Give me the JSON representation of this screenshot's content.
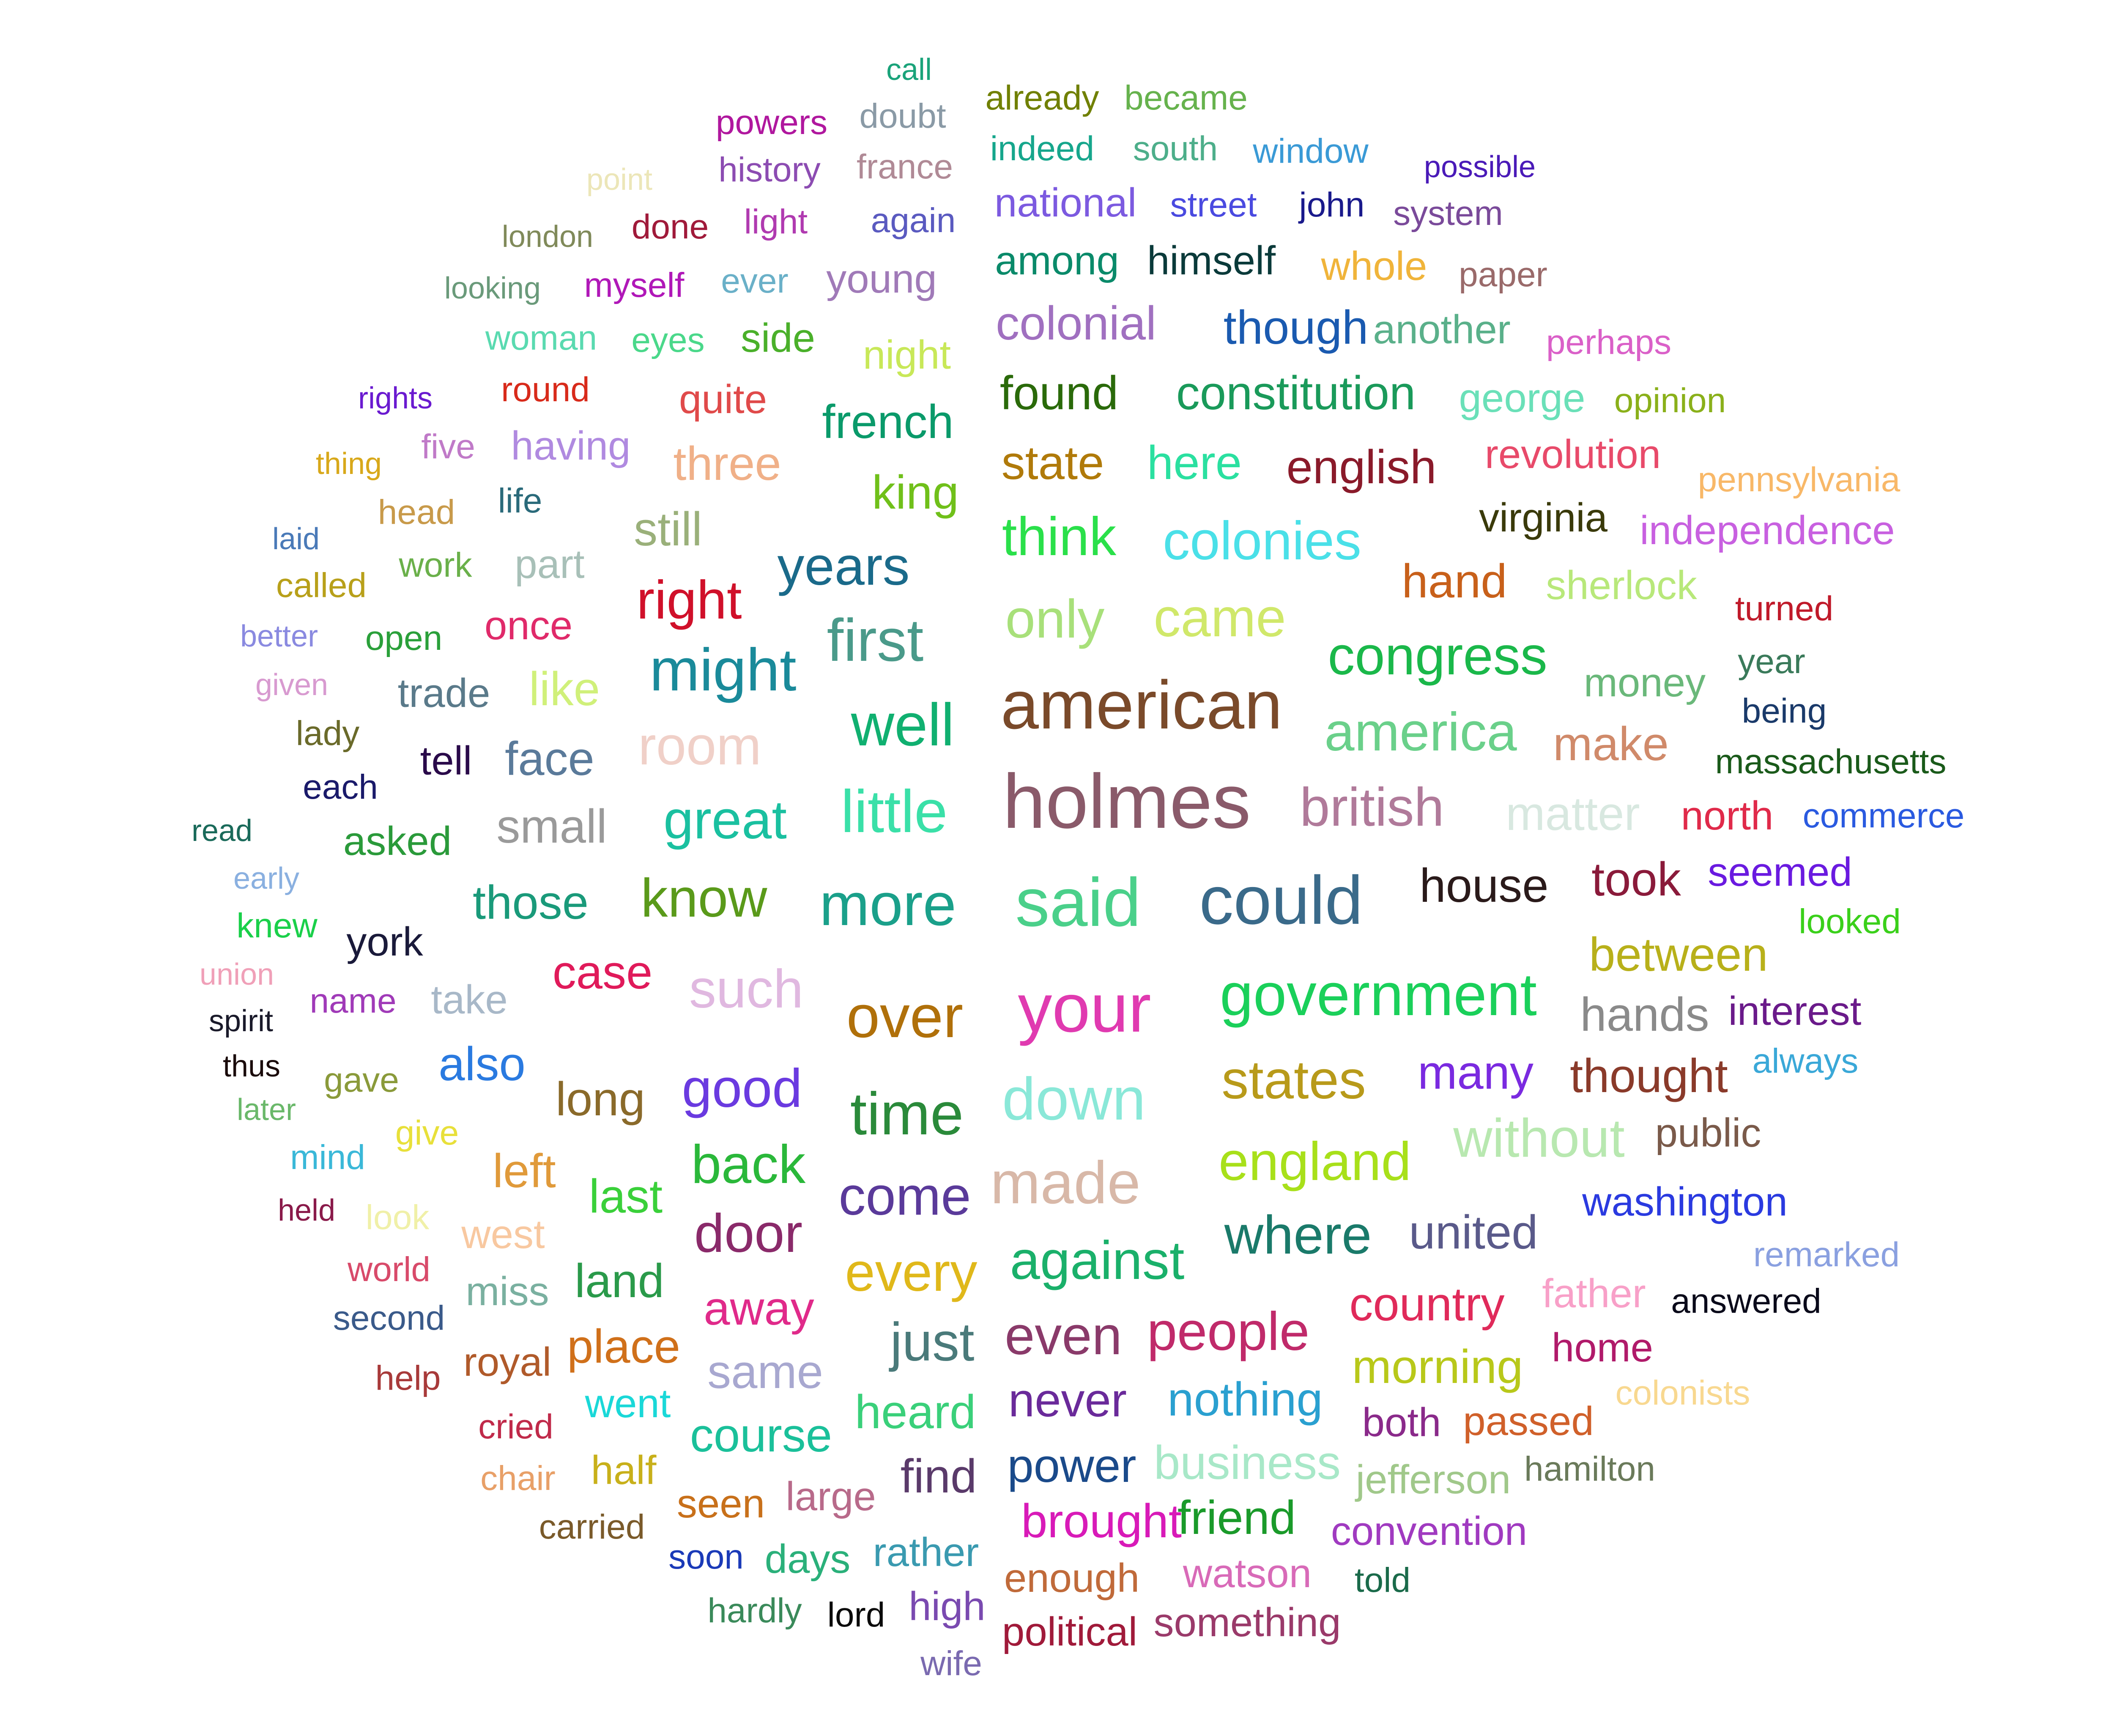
{
  "words": [
    {
      "text": "call",
      "color": "#1aa37a",
      "level": 1
    },
    {
      "text": "powers",
      "color": "#b0179e",
      "level": 2
    },
    {
      "text": "doubt",
      "color": "#8a9aa6",
      "level": 2
    },
    {
      "text": "already",
      "color": "#708000",
      "level": 2
    },
    {
      "text": "became",
      "color": "#66b24d",
      "level": 2
    },
    {
      "text": "point",
      "color": "#ece6b8",
      "level": 1
    },
    {
      "text": "history",
      "color": "#8c4cb2",
      "level": 2
    },
    {
      "text": "france",
      "color": "#b08a96",
      "level": 2
    },
    {
      "text": "indeed",
      "color": "#16a68c",
      "level": 2
    },
    {
      "text": "south",
      "color": "#4dae8a",
      "level": 2
    },
    {
      "text": "window",
      "color": "#3a9ad6",
      "level": 2
    },
    {
      "text": "possible",
      "color": "#4a1ab8",
      "level": 1
    },
    {
      "text": "london",
      "color": "#808a5a",
      "level": 1
    },
    {
      "text": "done",
      "color": "#a01a3a",
      "level": 2
    },
    {
      "text": "light",
      "color": "#b03ab0",
      "level": 2
    },
    {
      "text": "again",
      "color": "#5a5ac0",
      "level": 2
    },
    {
      "text": "national",
      "color": "#7c5ae0",
      "level": 3
    },
    {
      "text": "street",
      "color": "#4a4ae0",
      "level": 2
    },
    {
      "text": "john",
      "color": "#1a1a8c",
      "level": 2
    },
    {
      "text": "system",
      "color": "#7a4a9a",
      "level": 2
    },
    {
      "text": "looking",
      "color": "#6a9a7a",
      "level": 1
    },
    {
      "text": "myself",
      "color": "#b018b8",
      "level": 2
    },
    {
      "text": "ever",
      "color": "#6ab0c8",
      "level": 2
    },
    {
      "text": "young",
      "color": "#a07ab8",
      "level": 3
    },
    {
      "text": "among",
      "color": "#0a8a6a",
      "level": 3
    },
    {
      "text": "himself",
      "color": "#0a3a3a",
      "level": 3
    },
    {
      "text": "whole",
      "color": "#f0b43a",
      "level": 3
    },
    {
      "text": "paper",
      "color": "#9a6a6a",
      "level": 2
    },
    {
      "text": "woman",
      "color": "#5adab0",
      "level": 2
    },
    {
      "text": "eyes",
      "color": "#4ad88a",
      "level": 2
    },
    {
      "text": "side",
      "color": "#4ab02a",
      "level": 3
    },
    {
      "text": "night",
      "color": "#c8e858",
      "level": 3
    },
    {
      "text": "colonial",
      "color": "#a070c0",
      "level": 4
    },
    {
      "text": "though",
      "color": "#1a5ab0",
      "level": 4
    },
    {
      "text": "another",
      "color": "#5ab08a",
      "level": 3
    },
    {
      "text": "perhaps",
      "color": "#da60c8",
      "level": 2
    },
    {
      "text": "rights",
      "color": "#6a1ad0",
      "level": 1
    },
    {
      "text": "round",
      "color": "#d82a1a",
      "level": 2
    },
    {
      "text": "quite",
      "color": "#e04a4a",
      "level": 3
    },
    {
      "text": "french",
      "color": "#0a9a6a",
      "level": 4
    },
    {
      "text": "found",
      "color": "#2a6a0a",
      "level": 4
    },
    {
      "text": "constitution",
      "color": "#1a9a5a",
      "level": 4
    },
    {
      "text": "george",
      "color": "#6ae0b8",
      "level": 3
    },
    {
      "text": "opinion",
      "color": "#8ab01a",
      "level": 2
    },
    {
      "text": "thing",
      "color": "#d8a81a",
      "level": 1
    },
    {
      "text": "five",
      "color": "#c07ac8",
      "level": 2
    },
    {
      "text": "having",
      "color": "#b08ae0",
      "level": 3
    },
    {
      "text": "three",
      "color": "#f0b088",
      "level": 4
    },
    {
      "text": "king",
      "color": "#70c01a",
      "level": 4
    },
    {
      "text": "state",
      "color": "#b07a0a",
      "level": 4
    },
    {
      "text": "here",
      "color": "#2ae0a0",
      "level": 4
    },
    {
      "text": "english",
      "color": "#8a1a2a",
      "level": 4
    },
    {
      "text": "revolution",
      "color": "#e84a6a",
      "level": 3
    },
    {
      "text": "pennsylvania",
      "color": "#f8b868",
      "level": 2
    },
    {
      "text": "head",
      "color": "#c89a4a",
      "level": 2
    },
    {
      "text": "life",
      "color": "#2a6a7a",
      "level": 2
    },
    {
      "text": "still",
      "color": "#9ab07a",
      "level": 4
    },
    {
      "text": "think",
      "color": "#2ae04a",
      "level": 5
    },
    {
      "text": "colonies",
      "color": "#4ae0e8",
      "level": 5
    },
    {
      "text": "virginia",
      "color": "#3a3a0a",
      "level": 3
    },
    {
      "text": "independence",
      "color": "#c860e0",
      "level": 3
    },
    {
      "text": "laid",
      "color": "#4a7ab8",
      "level": 1
    },
    {
      "text": "called",
      "color": "#b8a01a",
      "level": 2
    },
    {
      "text": "work",
      "color": "#6ab04a",
      "level": 2
    },
    {
      "text": "part",
      "color": "#a8c0b8",
      "level": 3
    },
    {
      "text": "years",
      "color": "#1a6a8a",
      "level": 5
    },
    {
      "text": "hand",
      "color": "#c8601a",
      "level": 4
    },
    {
      "text": "sherlock",
      "color": "#b8e87a",
      "level": 3
    },
    {
      "text": "right",
      "color": "#d0102a",
      "level": 5
    },
    {
      "text": "only",
      "color": "#a8e07a",
      "level": 5
    },
    {
      "text": "came",
      "color": "#d0e86a",
      "level": 5
    },
    {
      "text": "turned",
      "color": "#c01a2a",
      "level": 2
    },
    {
      "text": "better",
      "color": "#8a8ae0",
      "level": 1
    },
    {
      "text": "open",
      "color": "#2aa03a",
      "level": 2
    },
    {
      "text": "once",
      "color": "#e02a6a",
      "level": 3
    },
    {
      "text": "first",
      "color": "#4a9a8a",
      "level": 6
    },
    {
      "text": "congress",
      "color": "#1ab84a",
      "level": 5
    },
    {
      "text": "year",
      "color": "#3a7a5a",
      "level": 2
    },
    {
      "text": "given",
      "color": "#d89ad0",
      "level": 1
    },
    {
      "text": "trade",
      "color": "#5a7a8a",
      "level": 3
    },
    {
      "text": "like",
      "color": "#d0f07a",
      "level": 4
    },
    {
      "text": "might",
      "color": "#1a8a9a",
      "level": 6
    },
    {
      "text": "american",
      "color": "#7a4a2a",
      "level": 7
    },
    {
      "text": "money",
      "color": "#6ab87a",
      "level": 3
    },
    {
      "text": "being",
      "color": "#1a3a6a",
      "level": 2
    },
    {
      "text": "lady",
      "color": "#6a6a2a",
      "level": 2
    },
    {
      "text": "well",
      "color": "#10b070",
      "level": 6
    },
    {
      "text": "america",
      "color": "#6ad08a",
      "level": 5
    },
    {
      "text": "make",
      "color": "#d08a6a",
      "level": 4
    },
    {
      "text": "massachusetts",
      "color": "#1a5a1a",
      "level": 2
    },
    {
      "text": "tell",
      "color": "#2a0a4a",
      "level": 3
    },
    {
      "text": "face",
      "color": "#5a7a9a",
      "level": 4
    },
    {
      "text": "room",
      "color": "#f0d0c8",
      "level": 5
    },
    {
      "text": "each",
      "color": "#1a1a6a",
      "level": 2
    },
    {
      "text": "read",
      "color": "#1a6a5a",
      "level": 1
    },
    {
      "text": "asked",
      "color": "#2a9a3a",
      "level": 3
    },
    {
      "text": "small",
      "color": "#9a9a9a",
      "level": 4
    },
    {
      "text": "great",
      "color": "#1ac0a0",
      "level": 5
    },
    {
      "text": "little",
      "color": "#3ae0a8",
      "level": 6
    },
    {
      "text": "holmes",
      "color": "#8a5a6a",
      "level": 8
    },
    {
      "text": "british",
      "color": "#b07a9a",
      "level": 5
    },
    {
      "text": "matter",
      "color": "#d8e8e0",
      "level": 4
    },
    {
      "text": "north",
      "color": "#e02a4a",
      "level": 3
    },
    {
      "text": "commerce",
      "color": "#2a5ae0",
      "level": 2
    },
    {
      "text": "early",
      "color": "#8ab0e0",
      "level": 1
    },
    {
      "text": "seemed",
      "color": "#6a1ae0",
      "level": 3
    },
    {
      "text": "those",
      "color": "#1a9a7a",
      "level": 4
    },
    {
      "text": "know",
      "color": "#5a9a1a",
      "level": 5
    },
    {
      "text": "more",
      "color": "#1aa08a",
      "level": 6
    },
    {
      "text": "said",
      "color": "#4ad08a",
      "level": 7
    },
    {
      "text": "could",
      "color": "#3a6a8a",
      "level": 7
    },
    {
      "text": "house",
      "color": "#2a1a1a",
      "level": 4
    },
    {
      "text": "took",
      "color": "#8a1a3a",
      "level": 4
    },
    {
      "text": "knew",
      "color": "#1ad04a",
      "level": 2
    },
    {
      "text": "looked",
      "color": "#3ad01a",
      "level": 2
    },
    {
      "text": "york",
      "color": "#1a1a3a",
      "level": 3
    },
    {
      "text": "union",
      "color": "#f0a0b8",
      "level": 1
    },
    {
      "text": "between",
      "color": "#b8b01a",
      "level": 4
    },
    {
      "text": "case",
      "color": "#e01a5a",
      "level": 4
    },
    {
      "text": "name",
      "color": "#a03ab8",
      "level": 2
    },
    {
      "text": "take",
      "color": "#a8b8c8",
      "level": 3
    },
    {
      "text": "such",
      "color": "#e0b8e0",
      "level": 5
    },
    {
      "text": "spirit",
      "color": "#1a1a2a",
      "level": 1
    },
    {
      "text": "over",
      "color": "#b0700a",
      "level": 6
    },
    {
      "text": "your",
      "color": "#e03ab0",
      "level": 7
    },
    {
      "text": "government",
      "color": "#1ad05a",
      "level": 6
    },
    {
      "text": "hands",
      "color": "#8a8a8a",
      "level": 4
    },
    {
      "text": "interest",
      "color": "#6a1a8a",
      "level": 3
    },
    {
      "text": "also",
      "color": "#2a7ae0",
      "level": 4
    },
    {
      "text": "thus",
      "color": "#1a0a0a",
      "level": 1
    },
    {
      "text": "gave",
      "color": "#8a9a3a",
      "level": 2
    },
    {
      "text": "long",
      "color": "#8a6a2a",
      "level": 4
    },
    {
      "text": "good",
      "color": "#6a3ae0",
      "level": 5
    },
    {
      "text": "time",
      "color": "#2a8a3a",
      "level": 6
    },
    {
      "text": "down",
      "color": "#8ae8d8",
      "level": 6
    },
    {
      "text": "states",
      "color": "#b89a1a",
      "level": 5
    },
    {
      "text": "many",
      "color": "#7a2ae0",
      "level": 4
    },
    {
      "text": "thought",
      "color": "#8a3a2a",
      "level": 4
    },
    {
      "text": "always",
      "color": "#3aa8d8",
      "level": 2
    },
    {
      "text": "later",
      "color": "#6ab86a",
      "level": 1
    },
    {
      "text": "give",
      "color": "#e8e03a",
      "level": 2
    },
    {
      "text": "without",
      "color": "#b8e8b0",
      "level": 5
    },
    {
      "text": "public",
      "color": "#7a5a4a",
      "level": 3
    },
    {
      "text": "mind",
      "color": "#3ab8d8",
      "level": 2
    },
    {
      "text": "left",
      "color": "#e09a3a",
      "level": 4
    },
    {
      "text": "back",
      "color": "#2ab83a",
      "level": 5
    },
    {
      "text": "made",
      "color": "#d8b8a8",
      "level": 6
    },
    {
      "text": "england",
      "color": "#a8e01a",
      "level": 5
    },
    {
      "text": "last",
      "color": "#3ad03a",
      "level": 4
    },
    {
      "text": "come",
      "color": "#5a3a9a",
      "level": 5
    },
    {
      "text": "held",
      "color": "#8a1a4a",
      "level": 1
    },
    {
      "text": "look",
      "color": "#f0f0a8",
      "level": 2
    },
    {
      "text": "west",
      "color": "#f8c8a0",
      "level": 3
    },
    {
      "text": "door",
      "color": "#8a2a6a",
      "level": 5
    },
    {
      "text": "where",
      "color": "#1a7a6a",
      "level": 5
    },
    {
      "text": "united",
      "color": "#5a5a8a",
      "level": 4
    },
    {
      "text": "washington",
      "color": "#2a3ae0",
      "level": 3
    },
    {
      "text": "world",
      "color": "#d84a6a",
      "level": 2
    },
    {
      "text": "land",
      "color": "#2a9a4a",
      "level": 4
    },
    {
      "text": "every",
      "color": "#e0b81a",
      "level": 5
    },
    {
      "text": "against",
      "color": "#1ab06a",
      "level": 5
    },
    {
      "text": "remarked",
      "color": "#8aa0e0",
      "level": 2
    },
    {
      "text": "miss",
      "color": "#7ab0a0",
      "level": 3
    },
    {
      "text": "away",
      "color": "#e02a8a",
      "level": 4
    },
    {
      "text": "father",
      "color": "#f8a0c8",
      "level": 3
    },
    {
      "text": "answered",
      "color": "#0a0a1a",
      "level": 2
    },
    {
      "text": "second",
      "color": "#3a5a8a",
      "level": 2
    },
    {
      "text": "country",
      "color": "#e02a5a",
      "level": 4
    },
    {
      "text": "even",
      "color": "#8a3a6a",
      "level": 5
    },
    {
      "text": "people",
      "color": "#c02a6a",
      "level": 5
    },
    {
      "text": "just",
      "color": "#4a7a7a",
      "level": 5
    },
    {
      "text": "home",
      "color": "#b01a6a",
      "level": 3
    },
    {
      "text": "royal",
      "color": "#b05a2a",
      "level": 3
    },
    {
      "text": "place",
      "color": "#d0701a",
      "level": 4
    },
    {
      "text": "same",
      "color": "#a8a8d0",
      "level": 4
    },
    {
      "text": "morning",
      "color": "#b8c81a",
      "level": 4
    },
    {
      "text": "colonists",
      "color": "#f8d890",
      "level": 2
    },
    {
      "text": "help",
      "color": "#a83a3a",
      "level": 2
    },
    {
      "text": "heard",
      "color": "#3ad07a",
      "level": 4
    },
    {
      "text": "never",
      "color": "#6a2a9a",
      "level": 4
    },
    {
      "text": "nothing",
      "color": "#2aa0d0",
      "level": 4
    },
    {
      "text": "both",
      "color": "#8a2a8a",
      "level": 3
    },
    {
      "text": "passed",
      "color": "#d0602a",
      "level": 3
    },
    {
      "text": "went",
      "color": "#1ad8d8",
      "level": 3
    },
    {
      "text": "cried",
      "color": "#c02a4a",
      "level": 2
    },
    {
      "text": "course",
      "color": "#1ac09a",
      "level": 4
    },
    {
      "text": "business",
      "color": "#a8e8c8",
      "level": 4
    },
    {
      "text": "hamilton",
      "color": "#6a7a5a",
      "level": 2
    },
    {
      "text": "half",
      "color": "#c8b01a",
      "level": 3
    },
    {
      "text": "power",
      "color": "#1a4a8a",
      "level": 4
    },
    {
      "text": "jefferson",
      "color": "#a0c88a",
      "level": 3
    },
    {
      "text": "chair",
      "color": "#e8a068",
      "level": 2
    },
    {
      "text": "find",
      "color": "#5a3a6a",
      "level": 4
    },
    {
      "text": "seen",
      "color": "#c8701a",
      "level": 3
    },
    {
      "text": "large",
      "color": "#b86a8a",
      "level": 3
    },
    {
      "text": "brought",
      "color": "#d81ab8",
      "level": 4
    },
    {
      "text": "friend",
      "color": "#1a9a2a",
      "level": 4
    },
    {
      "text": "carried",
      "color": "#7a5a2a",
      "level": 2
    },
    {
      "text": "convention",
      "color": "#a03ac0",
      "level": 3
    },
    {
      "text": "rather",
      "color": "#3a9ab0",
      "level": 3
    },
    {
      "text": "soon",
      "color": "#1a3ab8",
      "level": 2
    },
    {
      "text": "days",
      "color": "#2ab07a",
      "level": 3
    },
    {
      "text": "enough",
      "color": "#c06a3a",
      "level": 3
    },
    {
      "text": "watson",
      "color": "#d86ab8",
      "level": 3
    },
    {
      "text": "told",
      "color": "#1a6a4a",
      "level": 2
    },
    {
      "text": "hardly",
      "color": "#3a8a5a",
      "level": 2
    },
    {
      "text": "lord",
      "color": "#0a0a0a",
      "level": 2
    },
    {
      "text": "high",
      "color": "#7a4ab0",
      "level": 3
    },
    {
      "text": "political",
      "color": "#a01a3a",
      "level": 3
    },
    {
      "text": "something",
      "color": "#9a3a6a",
      "level": 3
    },
    {
      "text": "wife",
      "color": "#7a6ab0",
      "level": 2
    }
  ]
}
